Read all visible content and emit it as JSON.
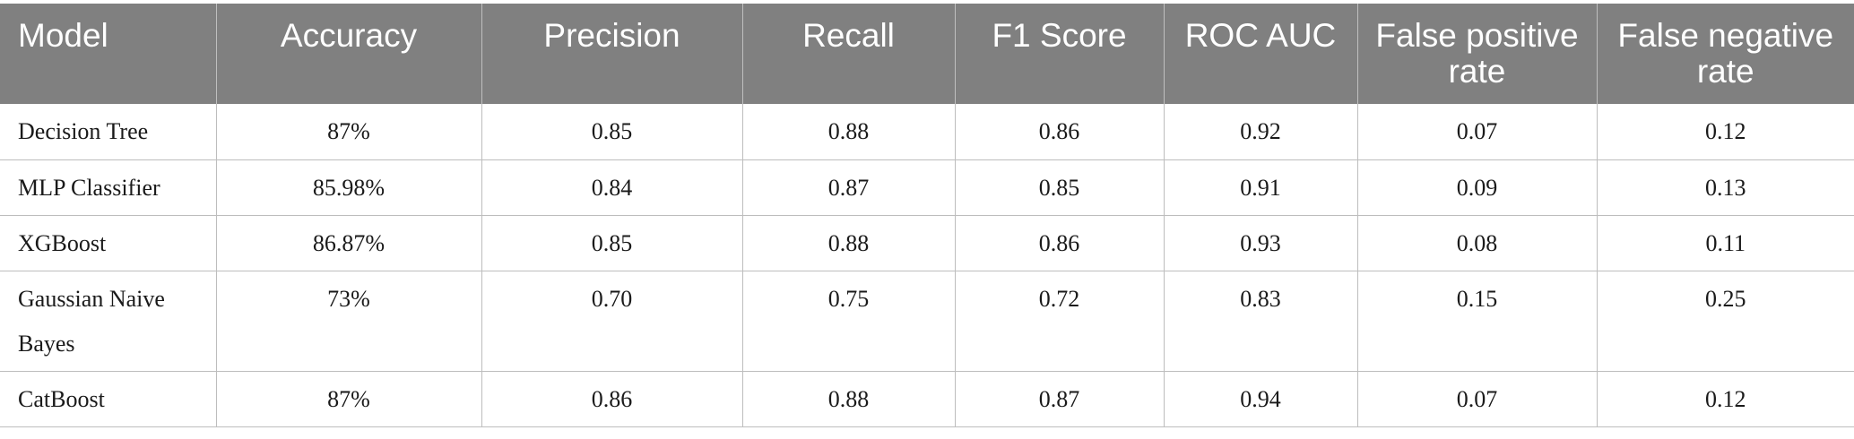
{
  "table": {
    "headers": [
      "Model",
      "Accuracy",
      "Precision",
      "Recall",
      "F1 Score",
      "ROC AUC",
      "False positive rate",
      "False negative rate"
    ],
    "rows": [
      [
        "Decision Tree",
        "87%",
        "0.85",
        "0.88",
        "0.86",
        "0.92",
        "0.07",
        "0.12"
      ],
      [
        "MLP Classifier",
        "85.98%",
        "0.84",
        "0.87",
        "0.85",
        "0.91",
        "0.09",
        "0.13"
      ],
      [
        "XGBoost",
        "86.87%",
        "0.85",
        "0.88",
        "0.86",
        "0.93",
        "0.08",
        "0.11"
      ],
      [
        "Gaussian Naive Bayes",
        "73%",
        "0.70",
        "0.75",
        "0.72",
        "0.83",
        "0.15",
        "0.25"
      ],
      [
        "CatBoost",
        "87%",
        "0.86",
        "0.88",
        "0.87",
        "0.94",
        "0.07",
        "0.12"
      ]
    ]
  },
  "colors": {
    "header_background": "#808080",
    "header_text": "#ffffff",
    "grid_lines": "#bdbdbd"
  }
}
